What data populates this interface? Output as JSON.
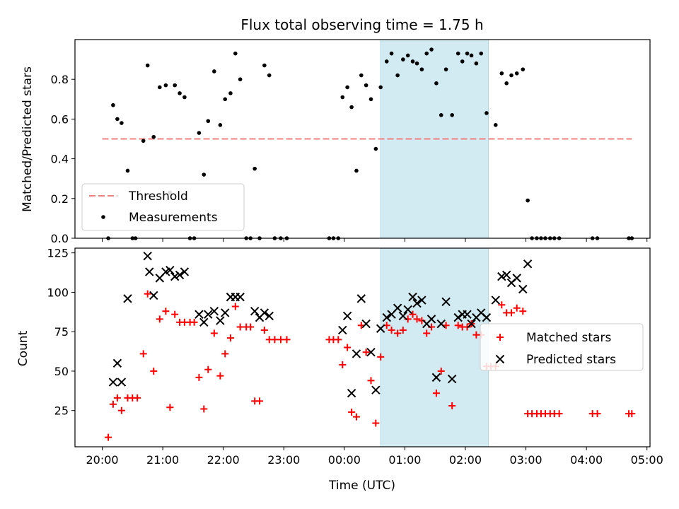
{
  "chart_data": [
    {
      "type": "scatter",
      "title": "Flux total observing time = 1.75 h",
      "ylabel": "Matched/Predicted stars",
      "xlabel": "",
      "xlim_hours_since_2000": [
        -0.45,
        9.05
      ],
      "ylim": [
        0,
        1.0
      ],
      "yticks": [
        0.0,
        0.2,
        0.4,
        0.6,
        0.8
      ],
      "ytick_labels": [
        "0.0",
        "0.2",
        "0.4",
        "0.6",
        "0.8"
      ],
      "shaded_region_hours_since_2000": [
        4.6,
        6.38
      ],
      "shaded_color": "#add8e6",
      "threshold": {
        "label": "Threshold",
        "value": 0.5,
        "x_range": [
          0,
          8.75
        ],
        "color": "#f08080"
      },
      "series": [
        {
          "name": "Measurements",
          "marker": "dot",
          "color": "#000000",
          "points": [
            [
              0.1,
              0.0
            ],
            [
              0.18,
              0.67
            ],
            [
              0.25,
              0.6
            ],
            [
              0.32,
              0.58
            ],
            [
              0.42,
              0.34
            ],
            [
              0.5,
              0.0
            ],
            [
              0.55,
              0.0
            ],
            [
              0.68,
              0.49
            ],
            [
              0.75,
              0.87
            ],
            [
              0.85,
              0.51
            ],
            [
              0.95,
              0.76
            ],
            [
              1.05,
              0.77
            ],
            [
              1.12,
              0.23
            ],
            [
              1.2,
              0.77
            ],
            [
              1.28,
              0.73
            ],
            [
              1.36,
              0.71
            ],
            [
              1.45,
              0.0
            ],
            [
              1.52,
              0.0
            ],
            [
              1.6,
              0.53
            ],
            [
              1.68,
              0.32
            ],
            [
              1.75,
              0.59
            ],
            [
              1.85,
              0.84
            ],
            [
              1.95,
              0.57
            ],
            [
              2.03,
              0.7
            ],
            [
              2.12,
              0.73
            ],
            [
              2.2,
              0.93
            ],
            [
              2.28,
              0.8
            ],
            [
              2.38,
              0.0
            ],
            [
              2.45,
              0.0
            ],
            [
              2.52,
              0.35
            ],
            [
              2.6,
              0.0
            ],
            [
              2.68,
              0.87
            ],
            [
              2.76,
              0.82
            ],
            [
              2.85,
              0.0
            ],
            [
              2.95,
              0.0
            ],
            [
              3.05,
              0.0
            ],
            [
              3.75,
              0.0
            ],
            [
              3.82,
              0.0
            ],
            [
              3.9,
              0.0
            ],
            [
              3.97,
              0.71
            ],
            [
              4.05,
              0.76
            ],
            [
              4.12,
              0.66
            ],
            [
              4.2,
              0.34
            ],
            [
              4.28,
              0.82
            ],
            [
              4.36,
              0.77
            ],
            [
              4.44,
              0.7
            ],
            [
              4.52,
              0.45
            ],
            [
              4.6,
              0.76
            ],
            [
              4.7,
              0.89
            ],
            [
              4.78,
              0.93
            ],
            [
              4.88,
              0.82
            ],
            [
              4.97,
              0.9
            ],
            [
              5.05,
              0.92
            ],
            [
              5.13,
              0.89
            ],
            [
              5.2,
              0.88
            ],
            [
              5.28,
              0.85
            ],
            [
              5.36,
              0.93
            ],
            [
              5.44,
              0.95
            ],
            [
              5.52,
              0.78
            ],
            [
              5.6,
              0.62
            ],
            [
              5.68,
              0.85
            ],
            [
              5.78,
              0.62
            ],
            [
              5.88,
              0.93
            ],
            [
              5.95,
              0.89
            ],
            [
              6.03,
              0.93
            ],
            [
              6.1,
              0.92
            ],
            [
              6.18,
              0.88
            ],
            [
              6.26,
              0.93
            ],
            [
              6.35,
              0.63
            ],
            [
              6.5,
              0.57
            ],
            [
              6.6,
              0.83
            ],
            [
              6.68,
              0.78
            ],
            [
              6.76,
              0.82
            ],
            [
              6.85,
              0.83
            ],
            [
              6.95,
              0.85
            ],
            [
              7.03,
              0.19
            ],
            [
              7.1,
              0.0
            ],
            [
              7.18,
              0.0
            ],
            [
              7.25,
              0.0
            ],
            [
              7.32,
              0.0
            ],
            [
              7.4,
              0.0
            ],
            [
              7.47,
              0.0
            ],
            [
              7.55,
              0.0
            ],
            [
              8.1,
              0.0
            ],
            [
              8.18,
              0.0
            ],
            [
              8.7,
              0.0
            ],
            [
              8.75,
              0.0
            ]
          ]
        }
      ],
      "legend": {
        "position": "lower left",
        "entries": [
          "Threshold",
          "Measurements"
        ]
      }
    },
    {
      "type": "scatter",
      "title": "",
      "xlabel": "Time (UTC)",
      "ylabel": "Count",
      "xlim_hours_since_2000": [
        -0.45,
        9.05
      ],
      "ylim": [
        2,
        128
      ],
      "yticks": [
        25,
        50,
        75,
        100,
        125
      ],
      "ytick_labels": [
        "25",
        "50",
        "75",
        "100",
        "125"
      ],
      "xticks_hours_since_2000": [
        0,
        1,
        2,
        3,
        4,
        5,
        6,
        7,
        8,
        9
      ],
      "xtick_labels": [
        "20:00",
        "21:00",
        "22:00",
        "23:00",
        "00:00",
        "01:00",
        "02:00",
        "03:00",
        "04:00",
        "05:00"
      ],
      "shaded_region_hours_since_2000": [
        4.6,
        6.38
      ],
      "shaded_color": "#add8e6",
      "series": [
        {
          "name": "Matched stars",
          "marker": "plus",
          "color": "#ff0000",
          "points": [
            [
              0.1,
              8
            ],
            [
              0.18,
              29
            ],
            [
              0.25,
              33
            ],
            [
              0.32,
              25
            ],
            [
              0.42,
              33
            ],
            [
              0.5,
              33
            ],
            [
              0.58,
              33
            ],
            [
              0.68,
              61
            ],
            [
              0.75,
              99
            ],
            [
              0.85,
              50
            ],
            [
              0.95,
              83
            ],
            [
              1.05,
              88
            ],
            [
              1.12,
              27
            ],
            [
              1.2,
              86
            ],
            [
              1.28,
              81
            ],
            [
              1.36,
              81
            ],
            [
              1.45,
              81
            ],
            [
              1.52,
              81
            ],
            [
              1.6,
              46
            ],
            [
              1.68,
              26
            ],
            [
              1.75,
              51
            ],
            [
              1.85,
              74
            ],
            [
              1.95,
              47
            ],
            [
              2.03,
              61
            ],
            [
              2.12,
              71
            ],
            [
              2.2,
              91
            ],
            [
              2.28,
              78
            ],
            [
              2.38,
              78
            ],
            [
              2.45,
              78
            ],
            [
              2.52,
              31
            ],
            [
              2.6,
              31
            ],
            [
              2.68,
              76
            ],
            [
              2.76,
              70
            ],
            [
              2.85,
              70
            ],
            [
              2.95,
              70
            ],
            [
              3.05,
              70
            ],
            [
              3.75,
              70
            ],
            [
              3.82,
              70
            ],
            [
              3.9,
              70
            ],
            [
              3.97,
              54
            ],
            [
              4.05,
              65
            ],
            [
              4.12,
              24
            ],
            [
              4.2,
              21
            ],
            [
              4.28,
              79
            ],
            [
              4.36,
              62
            ],
            [
              4.44,
              44
            ],
            [
              4.52,
              17
            ],
            [
              4.6,
              59
            ],
            [
              4.7,
              79
            ],
            [
              4.78,
              76
            ],
            [
              4.88,
              74
            ],
            [
              4.97,
              76
            ],
            [
              5.05,
              83
            ],
            [
              5.13,
              86
            ],
            [
              5.2,
              83
            ],
            [
              5.28,
              82
            ],
            [
              5.36,
              74
            ],
            [
              5.44,
              78
            ],
            [
              5.52,
              36
            ],
            [
              5.6,
              50
            ],
            [
              5.68,
              79
            ],
            [
              5.78,
              28
            ],
            [
              5.88,
              79
            ],
            [
              5.95,
              78
            ],
            [
              6.03,
              78
            ],
            [
              6.1,
              80
            ],
            [
              6.18,
              73
            ],
            [
              6.26,
              73
            ],
            [
              6.35,
              53
            ],
            [
              6.42,
              53
            ],
            [
              6.5,
              53
            ],
            [
              6.6,
              92
            ],
            [
              6.68,
              87
            ],
            [
              6.76,
              87
            ],
            [
              6.85,
              90
            ],
            [
              6.95,
              88
            ],
            [
              7.03,
              23
            ],
            [
              7.1,
              23
            ],
            [
              7.18,
              23
            ],
            [
              7.25,
              23
            ],
            [
              7.32,
              23
            ],
            [
              7.4,
              23
            ],
            [
              7.47,
              23
            ],
            [
              7.55,
              23
            ],
            [
              8.1,
              23
            ],
            [
              8.18,
              23
            ],
            [
              8.7,
              23
            ],
            [
              8.75,
              23
            ]
          ]
        },
        {
          "name": "Predicted stars",
          "marker": "x",
          "color": "#000000",
          "points": [
            [
              0.18,
              43
            ],
            [
              0.25,
              55
            ],
            [
              0.32,
              43
            ],
            [
              0.42,
              96
            ],
            [
              0.75,
              123
            ],
            [
              0.78,
              113
            ],
            [
              0.85,
              98
            ],
            [
              0.95,
              109
            ],
            [
              1.05,
              113
            ],
            [
              1.12,
              114
            ],
            [
              1.2,
              110
            ],
            [
              1.28,
              111
            ],
            [
              1.36,
              113
            ],
            [
              1.6,
              86
            ],
            [
              1.68,
              81
            ],
            [
              1.75,
              86
            ],
            [
              1.85,
              88
            ],
            [
              1.95,
              82
            ],
            [
              2.03,
              87
            ],
            [
              2.12,
              97
            ],
            [
              2.2,
              97
            ],
            [
              2.28,
              97
            ],
            [
              2.52,
              88
            ],
            [
              2.6,
              84
            ],
            [
              2.68,
              87
            ],
            [
              2.76,
              85
            ],
            [
              3.97,
              76
            ],
            [
              4.05,
              85
            ],
            [
              4.12,
              36
            ],
            [
              4.2,
              61
            ],
            [
              4.28,
              96
            ],
            [
              4.36,
              80
            ],
            [
              4.44,
              62
            ],
            [
              4.52,
              38
            ],
            [
              4.6,
              77
            ],
            [
              4.7,
              84
            ],
            [
              4.78,
              86
            ],
            [
              4.88,
              90
            ],
            [
              4.97,
              85
            ],
            [
              5.05,
              89
            ],
            [
              5.13,
              97
            ],
            [
              5.2,
              93
            ],
            [
              5.28,
              95
            ],
            [
              5.36,
              80
            ],
            [
              5.44,
              83
            ],
            [
              5.52,
              46
            ],
            [
              5.6,
              80
            ],
            [
              5.68,
              94
            ],
            [
              5.78,
              45
            ],
            [
              5.88,
              84
            ],
            [
              5.95,
              86
            ],
            [
              6.03,
              86
            ],
            [
              6.1,
              80
            ],
            [
              6.18,
              84
            ],
            [
              6.26,
              87
            ],
            [
              6.35,
              84
            ],
            [
              6.5,
              95
            ],
            [
              6.6,
              110
            ],
            [
              6.68,
              111
            ],
            [
              6.76,
              106
            ],
            [
              6.85,
              109
            ],
            [
              6.95,
              102
            ],
            [
              7.03,
              118
            ]
          ]
        }
      ],
      "legend": {
        "position": "center right",
        "entries": [
          "Matched stars",
          "Predicted stars"
        ]
      }
    }
  ]
}
